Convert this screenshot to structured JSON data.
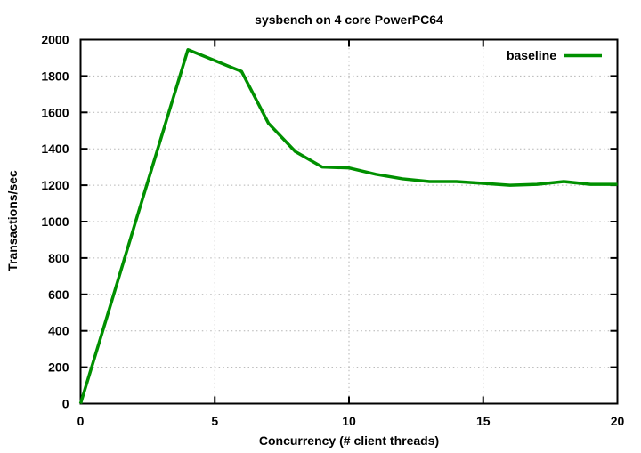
{
  "chart_data": {
    "type": "line",
    "title": "sysbench on 4 core PowerPC64",
    "xlabel": "Concurrency (# client threads)",
    "ylabel": "Transactions/sec",
    "xlim": [
      0,
      20
    ],
    "ylim": [
      0,
      2000
    ],
    "xticks": [
      0,
      5,
      10,
      15,
      20
    ],
    "yticks": [
      0,
      200,
      400,
      600,
      800,
      1000,
      1200,
      1400,
      1600,
      1800,
      2000
    ],
    "grid": true,
    "legend_position": "top-right-inside",
    "x": [
      0,
      1,
      2,
      3,
      4,
      5,
      6,
      7,
      8,
      9,
      10,
      11,
      12,
      13,
      14,
      15,
      16,
      17,
      18,
      19,
      20
    ],
    "series": [
      {
        "name": "baseline",
        "color": "#009000",
        "values": [
          0,
          485,
          975,
          1460,
          1945,
          1885,
          1825,
          1540,
          1385,
          1300,
          1295,
          1260,
          1235,
          1220,
          1220,
          1210,
          1200,
          1205,
          1220,
          1205,
          1205
        ]
      }
    ],
    "colors": {
      "background": "#ffffff",
      "border": "#000000",
      "grid": "#b3b3b3",
      "text": "#000000"
    }
  }
}
